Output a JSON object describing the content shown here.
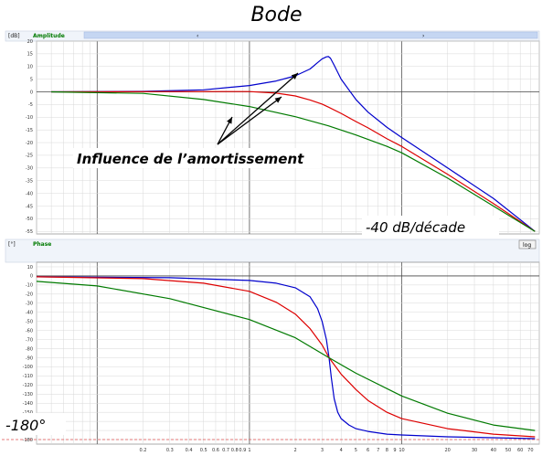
{
  "title": "Bode",
  "chart_data": [
    {
      "type": "line",
      "panel_title": "Amplitude",
      "unit_label": "[dB]",
      "x_scale": "log",
      "xlim": [
        0.04,
        80
      ],
      "ylim": [
        -56,
        20
      ],
      "y_ticks": [
        20,
        15,
        10,
        5,
        0,
        -5,
        -10,
        -15,
        -20,
        -25,
        -30,
        -35,
        -40,
        -45,
        -50,
        -55
      ],
      "series": [
        {
          "color": "#0000cc",
          "x": [
            0.05,
            0.2,
            0.5,
            1,
            1.5,
            2,
            2.5,
            2.8,
            3,
            3.2,
            3.3,
            3.4,
            3.6,
            4,
            5,
            6,
            8,
            10,
            20,
            40,
            75
          ],
          "y": [
            0,
            0.2,
            0.8,
            2.5,
            4.3,
            6.3,
            9,
            11.5,
            13,
            13.8,
            13.9,
            13.3,
            10.5,
            5,
            -3,
            -8,
            -14,
            -18,
            -30,
            -42,
            -55
          ]
        },
        {
          "color": "#dd0000",
          "x": [
            0.05,
            0.5,
            1,
            1.5,
            2,
            2.5,
            3,
            3.3,
            4,
            5,
            6,
            8,
            10,
            20,
            40,
            75
          ],
          "y": [
            0,
            0.1,
            0.1,
            -0.5,
            -1.6,
            -3.2,
            -4.8,
            -6,
            -8.5,
            -11.7,
            -14.2,
            -18.5,
            -21.5,
            -32.5,
            -44,
            -55
          ]
        },
        {
          "color": "#007a00",
          "x": [
            0.05,
            0.2,
            0.5,
            1,
            2,
            3.3,
            5,
            8,
            10,
            20,
            40,
            75
          ],
          "y": [
            0,
            -0.6,
            -3,
            -5.8,
            -9.8,
            -13.4,
            -17,
            -21.5,
            -24,
            -34,
            -45,
            -55
          ]
        }
      ],
      "annotations": [
        "Influence de l’amortissement",
        "-40 dB/décade"
      ]
    },
    {
      "type": "line",
      "panel_title": "Phase",
      "unit_label": "[°]",
      "log_button": "log",
      "x_scale": "log",
      "xlim": [
        0.04,
        80
      ],
      "ylim": [
        -185,
        15
      ],
      "y_ticks": [
        10,
        0,
        -10,
        -20,
        -30,
        -40,
        -50,
        -60,
        -70,
        -80,
        -90,
        -100,
        -110,
        -120,
        -130,
        -140,
        -150,
        -160,
        -170,
        -180
      ],
      "x_ticks": [
        0.2,
        0.3,
        0.4,
        0.5,
        0.6,
        0.7,
        0.8,
        0.9,
        1,
        2,
        3,
        4,
        5,
        6,
        7,
        8,
        9,
        10,
        20,
        30,
        40,
        50,
        60,
        70
      ],
      "x_tick_labels": [
        "0.2",
        "0.3",
        "0.4",
        "0.5",
        "0.6",
        "0.7",
        "0.8",
        "0.9",
        "1",
        "2",
        "3",
        "4",
        "5",
        "6",
        "7",
        "8",
        "9",
        "10",
        "20",
        "30",
        "40",
        "50",
        "60",
        "70"
      ],
      "series": [
        {
          "color": "#0000cc",
          "x": [
            0.04,
            0.3,
            1,
            1.5,
            2,
            2.5,
            2.8,
            3,
            3.2,
            3.33,
            3.45,
            3.6,
            3.8,
            4,
            4.5,
            5,
            6,
            8,
            10,
            20,
            40,
            75
          ],
          "y": [
            -1,
            -2,
            -5,
            -8,
            -13,
            -23,
            -36,
            -50,
            -70,
            -90,
            -112,
            -135,
            -150,
            -157,
            -164,
            -168,
            -171,
            -174,
            -175,
            -177,
            -178,
            -179
          ]
        },
        {
          "color": "#dd0000",
          "x": [
            0.04,
            0.2,
            0.5,
            1,
            1.5,
            2,
            2.5,
            3,
            3.33,
            4,
            5,
            6,
            8,
            10,
            20,
            40,
            75
          ],
          "y": [
            -1,
            -3,
            -8,
            -17,
            -29,
            -42,
            -58,
            -76,
            -90,
            -108,
            -125,
            -137,
            -150,
            -157,
            -168,
            -174,
            -177
          ]
        },
        {
          "color": "#007a00",
          "x": [
            0.04,
            0.1,
            0.3,
            1,
            2,
            3.33,
            5,
            10,
            20,
            40,
            75
          ],
          "y": [
            -6,
            -11,
            -25,
            -48,
            -68,
            -90,
            -107,
            -132,
            -151,
            -164,
            -170
          ]
        }
      ],
      "annotations": [
        "-180°"
      ]
    }
  ]
}
